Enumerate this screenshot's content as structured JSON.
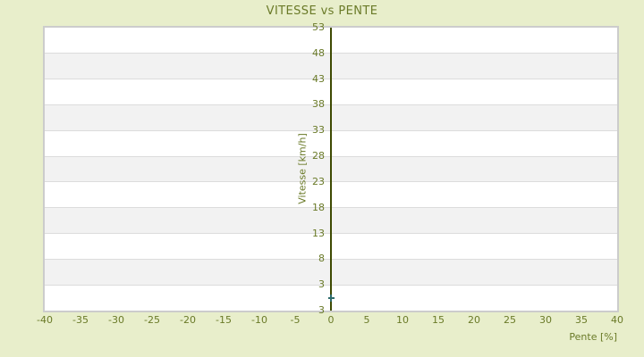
{
  "chart_data": {
    "type": "scatter",
    "title": "VITESSE vs PENTE",
    "xlabel": "Pente [%]",
    "ylabel": "Vitesse [km/h]",
    "x_ticks": [
      -40,
      -35,
      -30,
      -25,
      -20,
      -15,
      -10,
      -5,
      0,
      5,
      10,
      15,
      20,
      25,
      30,
      35,
      40
    ],
    "y_tick_labels": [
      "53",
      "48",
      "43",
      "38",
      "33",
      "28",
      "23",
      "18",
      "13",
      "8",
      "3",
      "3"
    ],
    "xlim": [
      -40,
      40
    ],
    "ylim": [
      -2,
      53
    ],
    "grid": "horizontal alternating bands with gridlines at each y tick",
    "legend": "none",
    "axis_line_at_x": 0,
    "points": [
      {
        "x": 0,
        "y": 0.45
      }
    ]
  },
  "colors": {
    "background": "#e8eecb",
    "text": "#6a7a28",
    "axis_line": "#3e4a02",
    "marker": "#2d6b6b",
    "gridline": "#dcdcdc",
    "plot_border": "#cccccc",
    "band_white": "#ffffff",
    "band_gray": "#f2f2f2"
  }
}
